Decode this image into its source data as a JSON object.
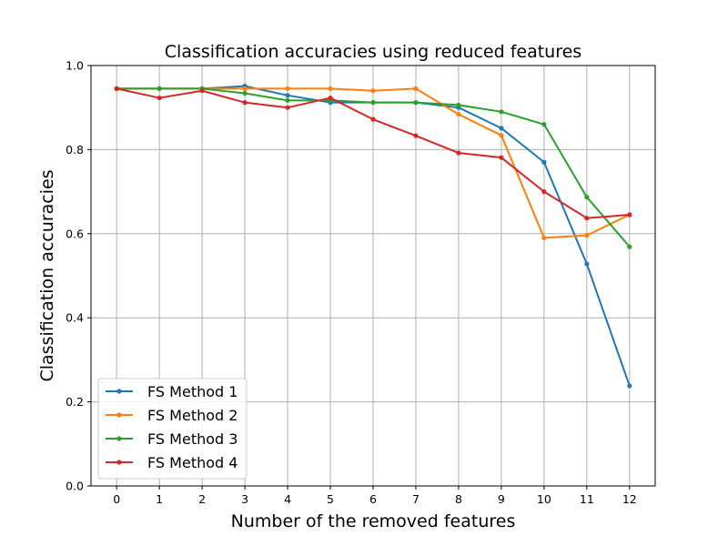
{
  "chart_data": {
    "type": "line",
    "title": "Classification accuracies using reduced features",
    "xlabel": "Number of the removed features",
    "ylabel": "Classification accuracies",
    "x": [
      0,
      1,
      2,
      3,
      4,
      5,
      6,
      7,
      8,
      9,
      10,
      11,
      12
    ],
    "xticks": [
      "0",
      "1",
      "2",
      "3",
      "4",
      "5",
      "6",
      "7",
      "8",
      "9",
      "10",
      "11",
      "12"
    ],
    "xlim": [
      -0.6,
      12.6
    ],
    "ylim": [
      0.0,
      1.0
    ],
    "yticks": [
      "0.0",
      "0.2",
      "0.4",
      "0.6",
      "0.8",
      "1.0"
    ],
    "grid": true,
    "legend_position": "lower-left",
    "series": [
      {
        "name": "FS Method 1",
        "color": "#1f77b4",
        "values": [
          0.945,
          0.945,
          0.945,
          0.951,
          0.929,
          0.912,
          0.912,
          0.912,
          0.9,
          0.851,
          0.77,
          0.528,
          0.238
        ]
      },
      {
        "name": "FS Method 2",
        "color": "#ff7f0e",
        "values": [
          0.945,
          0.945,
          0.945,
          0.945,
          0.945,
          0.945,
          0.94,
          0.945,
          0.884,
          0.834,
          0.59,
          0.596,
          0.645
        ]
      },
      {
        "name": "FS Method 3",
        "color": "#2ca02c",
        "values": [
          0.945,
          0.945,
          0.945,
          0.934,
          0.917,
          0.917,
          0.912,
          0.912,
          0.906,
          0.89,
          0.86,
          0.687,
          0.569
        ]
      },
      {
        "name": "FS Method 4",
        "color": "#d62728",
        "values": [
          0.945,
          0.923,
          0.94,
          0.912,
          0.9,
          0.923,
          0.872,
          0.833,
          0.792,
          0.781,
          0.7,
          0.637,
          0.645
        ]
      }
    ]
  }
}
